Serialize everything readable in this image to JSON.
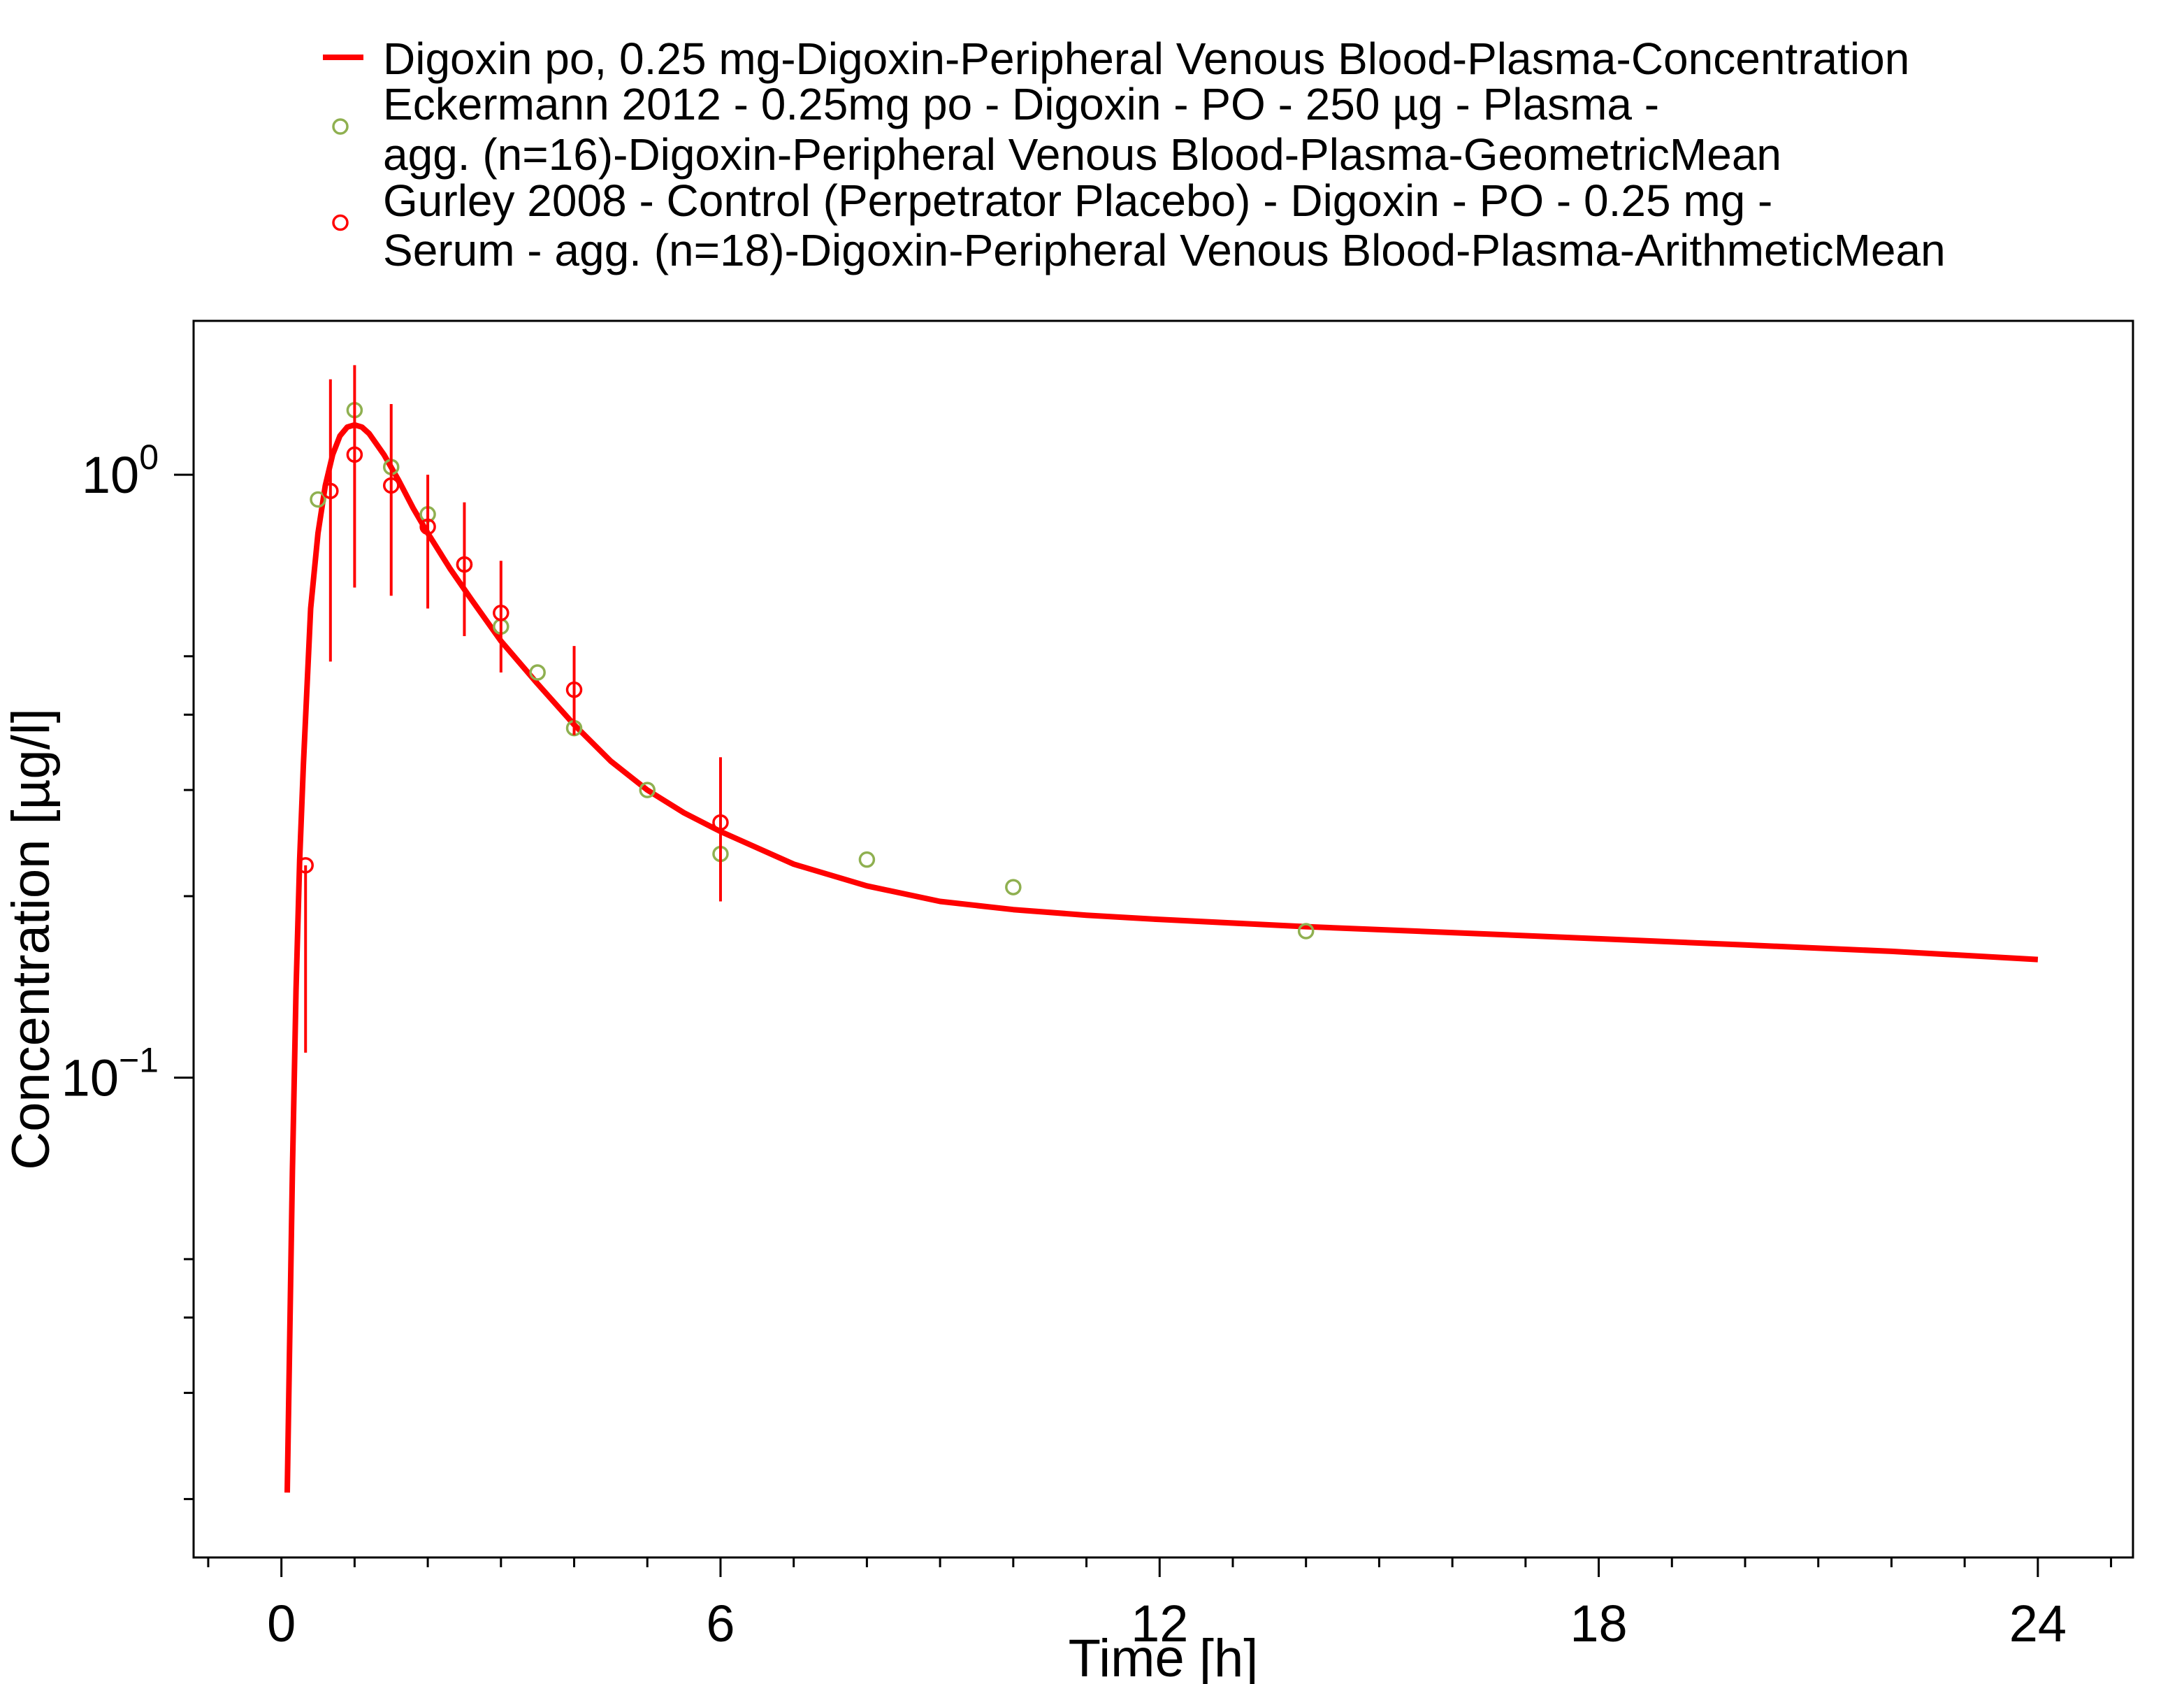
{
  "chart_data": {
    "type": "line",
    "title": "",
    "xlabel": "Time [h]",
    "ylabel": "Concentration [µg/l]",
    "xlim": [
      -1.2,
      25.3
    ],
    "ylim": [
      0.016,
      1.8
    ],
    "y_scale": "log",
    "x_ticks": [
      {
        "value": 0,
        "label": "0"
      },
      {
        "value": 6,
        "label": "6"
      },
      {
        "value": 12,
        "label": "12"
      },
      {
        "value": 18,
        "label": "18"
      },
      {
        "value": 24,
        "label": "24"
      }
    ],
    "y_ticks": [
      {
        "value": 1,
        "base": "10",
        "exp": "0"
      },
      {
        "value": 0.1,
        "base": "10",
        "exp": "−1"
      }
    ],
    "x_minor_step": 1,
    "y_minor_ticks": [
      0.02,
      0.03,
      0.04,
      0.05,
      0.2,
      0.3,
      0.4,
      0.5
    ],
    "grid": false,
    "legend_position": "top",
    "series": [
      {
        "name": "Digoxin po, 0.25 mg-Digoxin-Peripheral Venous Blood-Plasma-Concentration",
        "kind": "line",
        "color": "#ff0000",
        "x": [
          0.08,
          0.15,
          0.2,
          0.25,
          0.3,
          0.4,
          0.5,
          0.6,
          0.7,
          0.8,
          0.9,
          1.0,
          1.1,
          1.2,
          1.4,
          1.6,
          1.8,
          2.0,
          2.3,
          2.6,
          3.0,
          3.5,
          4.0,
          4.5,
          5.0,
          5.5,
          6.0,
          7.0,
          8.0,
          9.0,
          10.0,
          11.0,
          12.0,
          14.0,
          16.0,
          18.0,
          20.0,
          22.0,
          24.0
        ],
        "y": [
          0.0205,
          0.07,
          0.14,
          0.23,
          0.33,
          0.6,
          0.8,
          0.96,
          1.08,
          1.16,
          1.2,
          1.21,
          1.2,
          1.17,
          1.08,
          0.98,
          0.88,
          0.8,
          0.7,
          0.62,
          0.53,
          0.45,
          0.385,
          0.335,
          0.3,
          0.275,
          0.256,
          0.226,
          0.208,
          0.196,
          0.19,
          0.186,
          0.183,
          0.178,
          0.174,
          0.17,
          0.166,
          0.162,
          0.157
        ]
      },
      {
        "name": "Eckermann 2012 - 0.25mg po - Digoxin - PO - 250 µg - Plasma - agg. (n=16)-Digoxin-Peripheral Venous Blood-Plasma-GeometricMean",
        "legend_lines": [
          "Eckermann 2012 - 0.25mg po - Digoxin - PO - 250 µg - Plasma -",
          "agg. (n=16)-Digoxin-Peripheral Venous Blood-Plasma-GeometricMean"
        ],
        "kind": "scatter",
        "color": "#8fb050",
        "x": [
          0.5,
          1.0,
          1.5,
          2.0,
          2.5,
          3.0,
          3.5,
          4.0,
          5.0,
          6.0,
          8.0,
          10.0,
          14.0
        ],
        "y": [
          0.91,
          1.28,
          1.03,
          0.86,
          0.71,
          0.56,
          0.47,
          0.38,
          0.3,
          0.235,
          0.23,
          0.207,
          0.175
        ]
      },
      {
        "name": "Gurley 2008 - Control (Perpetrator Placebo) - Digoxin - PO - 0.25 mg - Serum - agg. (n=18)-Digoxin-Peripheral Venous Blood-Plasma-ArithmeticMean",
        "legend_lines": [
          "Gurley 2008 - Control (Perpetrator Placebo) - Digoxin - PO - 0.25 mg -",
          "Serum - agg. (n=18)-Digoxin-Peripheral Venous Blood-Plasma-ArithmeticMean"
        ],
        "kind": "scatter",
        "color": "#ff0000",
        "x": [
          0.33,
          0.67,
          1.0,
          1.5,
          2.0,
          2.5,
          3.0,
          4.0,
          6.0
        ],
        "y": [
          0.225,
          0.94,
          1.08,
          0.96,
          0.82,
          0.71,
          0.59,
          0.44,
          0.265
        ],
        "y_low": [
          0.11,
          0.49,
          0.65,
          0.63,
          0.6,
          0.54,
          0.47,
          0.37,
          0.196
        ],
        "y_high": [
          0.225,
          1.44,
          1.52,
          1.31,
          1.0,
          0.9,
          0.72,
          0.52,
          0.34
        ]
      }
    ]
  }
}
